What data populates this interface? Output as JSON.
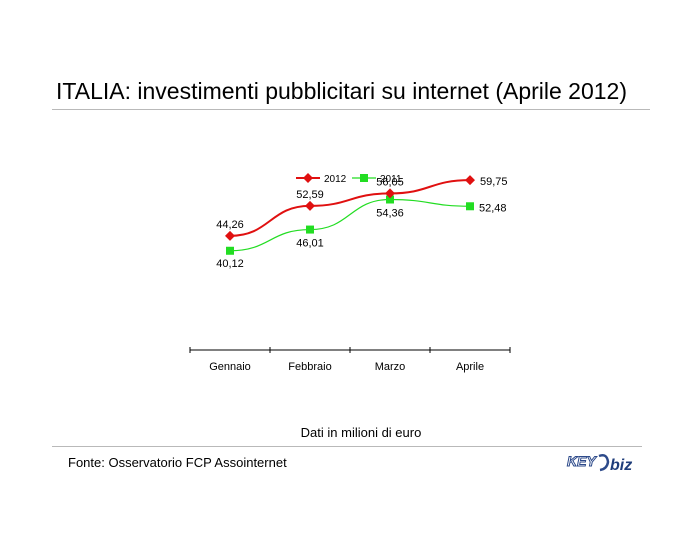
{
  "title": "ITALIA: investimenti pubblicitari su internet (Aprile 2012)",
  "note": "Dati in milioni di euro",
  "source": "Fonte: Osservatorio FCP Assointernet",
  "logo": {
    "text_left": "KEY",
    "text_right": "biz"
  },
  "chart_data": {
    "type": "line",
    "categories": [
      "Gennaio",
      "Febbraio",
      "Marzo",
      "Aprile"
    ],
    "series": [
      {
        "name": "2012",
        "values": [
          44.26,
          52.59,
          56.05,
          59.75
        ],
        "labels": [
          "44,26",
          "52,59",
          "56,05",
          "59,75"
        ],
        "color": "#e01010",
        "marker": "diamond"
      },
      {
        "name": "2011",
        "values": [
          40.12,
          46.01,
          54.36,
          52.48
        ],
        "labels": [
          "40,12",
          "46,01",
          "54,36",
          "52,48"
        ],
        "color": "#22dd22",
        "marker": "square"
      }
    ],
    "ylim": [
      0,
      80
    ],
    "legend": "top",
    "grid": false,
    "yaxis_visible": false
  }
}
